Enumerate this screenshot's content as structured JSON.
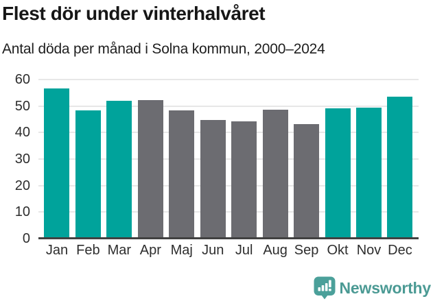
{
  "chart_data": {
    "type": "bar",
    "title": "Flest dör under vinterhalvåret",
    "subtitle": "Antal döda per månad i Solna kommun, 2000–2024",
    "categories": [
      "Jan",
      "Feb",
      "Mar",
      "Apr",
      "Maj",
      "Jun",
      "Jul",
      "Aug",
      "Sep",
      "Okt",
      "Nov",
      "Dec"
    ],
    "values": [
      56.7,
      48.4,
      51.9,
      52.2,
      48.3,
      44.7,
      44.3,
      48.5,
      43.3,
      49.1,
      49.4,
      53.5
    ],
    "bar_colors": [
      "#00a39b",
      "#00a39b",
      "#00a39b",
      "#6c6c71",
      "#6c6c71",
      "#6c6c71",
      "#6c6c71",
      "#6c6c71",
      "#6c6c71",
      "#00a39b",
      "#00a39b",
      "#00a39b"
    ],
    "xlabel": "",
    "ylabel": "",
    "ylim": [
      0,
      60
    ],
    "yticks": [
      0,
      10,
      20,
      30,
      40,
      50,
      60
    ],
    "grid": true,
    "legend_position": "none"
  },
  "colors": {
    "winter_bar": "#00a39b",
    "summer_bar": "#6c6c71",
    "gridline": "#e7e7e7",
    "axis_line": "#414141",
    "title_text": "#161616",
    "tick_text": "#2d2d2d",
    "brand": "#4b9a94"
  },
  "footer": {
    "brand": "Newsworthy"
  }
}
